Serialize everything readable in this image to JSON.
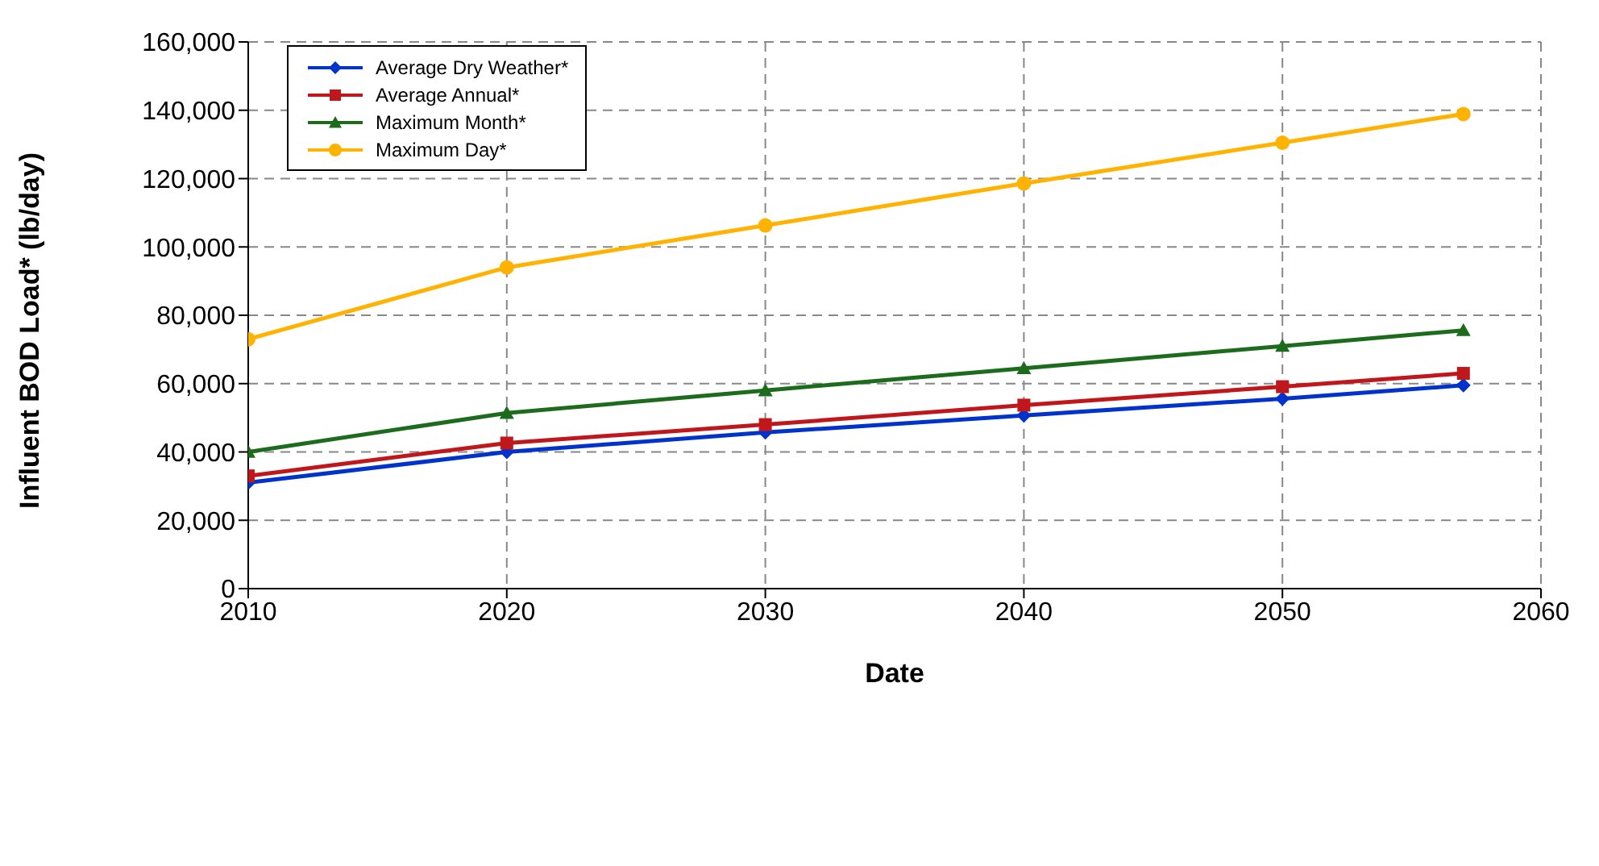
{
  "chart_data": {
    "type": "line",
    "xlabel": "Date",
    "ylabel": "Influent BOD Load* (lb/day)",
    "x": [
      2010,
      2020,
      2030,
      2040,
      2050,
      2057
    ],
    "series": [
      {
        "name": "Average Dry Weather*",
        "color": "#0033cc",
        "marker": "diamond",
        "values": [
          31000,
          40000,
          45700,
          50700,
          55600,
          59500
        ]
      },
      {
        "name": "Average Annual*",
        "color": "#c0171d",
        "marker": "square",
        "values": [
          33000,
          42600,
          48000,
          53700,
          59100,
          63000
        ]
      },
      {
        "name": "Maximum Month*",
        "color": "#1d6b1d",
        "marker": "triangle",
        "values": [
          40000,
          51400,
          58000,
          64500,
          71000,
          75600
        ]
      },
      {
        "name": "Maximum Day*",
        "color": "#ffb300",
        "marker": "circle",
        "values": [
          73000,
          94000,
          106300,
          118600,
          130500,
          138900
        ]
      }
    ],
    "xlim": [
      2010,
      2060
    ],
    "xticks": [
      2010,
      2020,
      2030,
      2040,
      2050,
      2060
    ],
    "ylim": [
      0,
      160000
    ],
    "yticks": [
      0,
      {
        "value": 20000,
        "label": "20,000"
      },
      {
        "value": 40000,
        "label": "40,000"
      },
      {
        "value": 60000,
        "label": "60,000"
      },
      {
        "value": 80000,
        "label": "80,000"
      },
      {
        "value": 100000,
        "label": "100,000"
      },
      {
        "value": 120000,
        "label": "120,000"
      },
      {
        "value": 140000,
        "label": "140,000"
      },
      {
        "value": 160000,
        "label": "160,000"
      }
    ],
    "grid": true,
    "legend": "top left",
    "line_style": "solid"
  }
}
